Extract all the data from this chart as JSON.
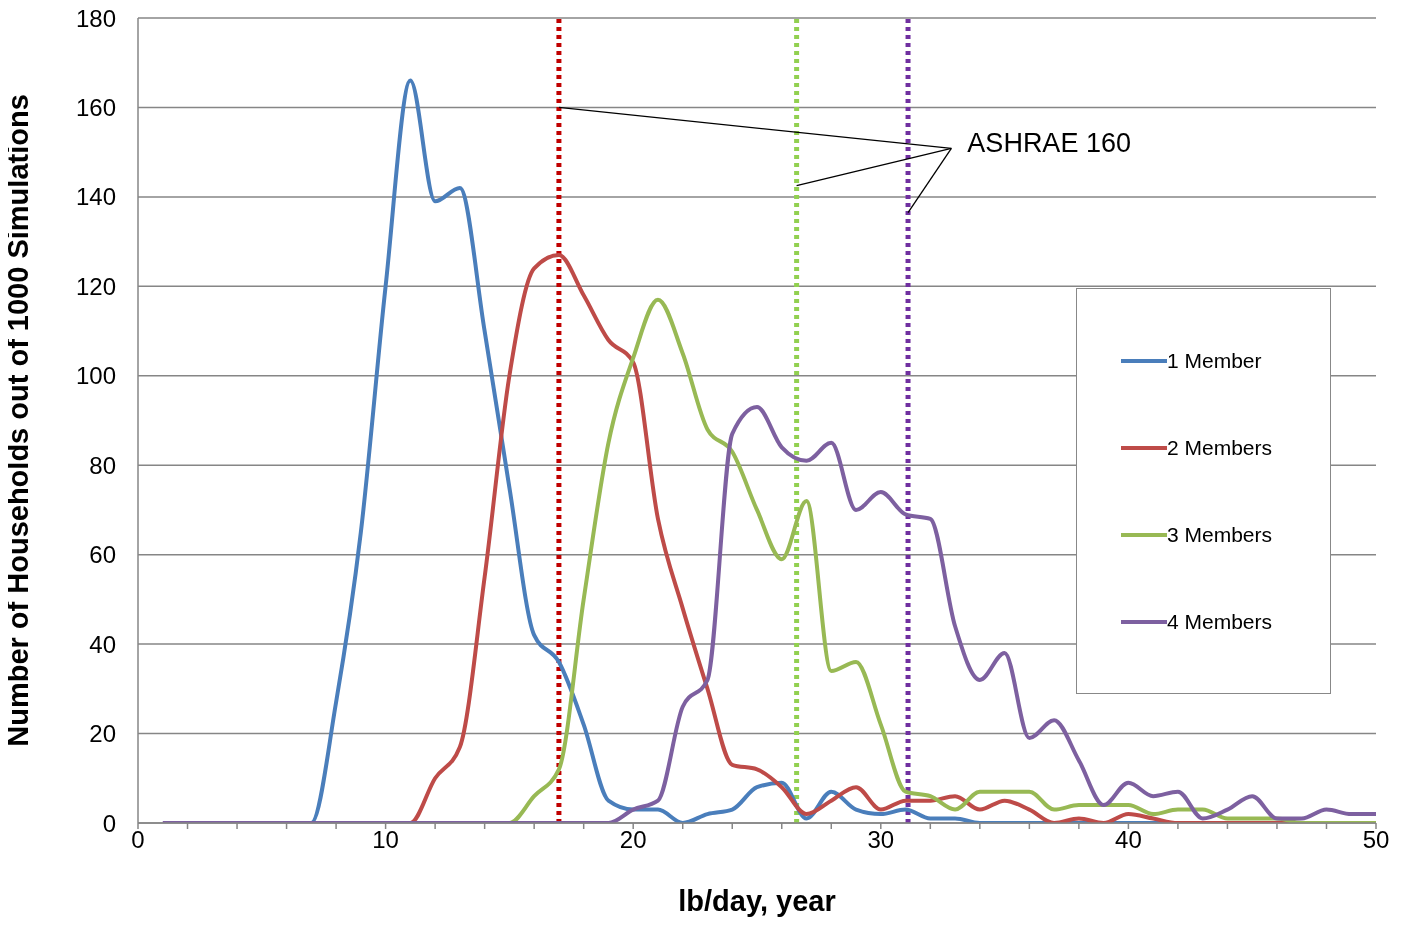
{
  "chart_data": {
    "type": "line",
    "xlabel": "lb/day, year",
    "ylabel": "Number of Households out of 1000 Simulations",
    "x": [
      1,
      2,
      3,
      4,
      5,
      6,
      7,
      8,
      9,
      10,
      11,
      12,
      13,
      14,
      15,
      16,
      17,
      18,
      19,
      20,
      21,
      22,
      23,
      24,
      25,
      26,
      27,
      28,
      29,
      30,
      31,
      32,
      33,
      34,
      35,
      36,
      37,
      38,
      39,
      40,
      41,
      42,
      43,
      44,
      45,
      46,
      47,
      48,
      49,
      50
    ],
    "series": [
      {
        "name": "1 Member",
        "color": "#4a7ebb",
        "values": [
          null,
          null,
          null,
          null,
          null,
          0,
          0,
          27,
          65,
          120,
          166,
          139,
          142,
          110,
          75,
          42,
          36,
          22,
          5,
          3,
          3,
          0,
          2,
          3,
          8,
          9,
          1,
          7,
          3,
          2,
          3,
          1,
          1,
          0,
          0,
          0,
          0,
          0,
          0,
          0,
          0,
          0,
          0,
          0,
          0,
          0,
          0,
          0,
          null,
          null
        ]
      },
      {
        "name": "2 Members",
        "color": "#be4b48",
        "values": [
          null,
          null,
          null,
          null,
          null,
          null,
          null,
          null,
          null,
          0,
          0,
          10,
          17,
          55,
          100,
          124,
          127,
          118,
          108,
          103,
          68,
          48,
          30,
          13,
          12,
          8,
          2,
          5,
          8,
          3,
          5,
          5,
          6,
          3,
          5,
          3,
          0,
          1,
          0,
          2,
          1,
          0,
          0,
          0,
          0,
          0,
          0,
          null,
          null,
          null
        ]
      },
      {
        "name": "3 Members",
        "color": "#98b954",
        "values": [
          null,
          null,
          null,
          null,
          null,
          null,
          null,
          null,
          null,
          null,
          null,
          null,
          null,
          0,
          0,
          6,
          12,
          50,
          85,
          104,
          117,
          105,
          88,
          83,
          70,
          59,
          72,
          34,
          36,
          22,
          7,
          6,
          3,
          7,
          7,
          7,
          3,
          4,
          4,
          4,
          2,
          3,
          3,
          1,
          1,
          1,
          0,
          0,
          0,
          0
        ]
      },
      {
        "name": "4 Members",
        "color": "#7d60a0",
        "values": [
          0,
          0,
          0,
          0,
          0,
          0,
          0,
          0,
          0,
          0,
          0,
          0,
          0,
          0,
          0,
          0,
          0,
          0,
          0,
          3,
          5,
          26,
          32,
          87,
          93,
          84,
          81,
          85,
          70,
          74,
          69,
          68,
          44,
          32,
          38,
          19,
          23,
          14,
          4,
          9,
          6,
          7,
          1,
          3,
          6,
          1,
          1,
          3,
          2,
          2
        ]
      }
    ],
    "xlim": [
      0,
      50
    ],
    "xticks": [
      0,
      {
        "value": 2,
        "label": null
      },
      {
        "value": 4,
        "label": null
      },
      {
        "value": 6,
        "label": null
      },
      {
        "value": 8,
        "label": null
      },
      10,
      {
        "value": 12,
        "label": null
      },
      {
        "value": 14,
        "label": null
      },
      {
        "value": 16,
        "label": null
      },
      {
        "value": 18,
        "label": null
      },
      20,
      {
        "value": 22,
        "label": null
      },
      {
        "value": 24,
        "label": null
      },
      {
        "value": 26,
        "label": null
      },
      {
        "value": 28,
        "label": null
      },
      30,
      {
        "value": 32,
        "label": null
      },
      {
        "value": 34,
        "label": null
      },
      {
        "value": 36,
        "label": null
      },
      {
        "value": 38,
        "label": null
      },
      40,
      {
        "value": 42,
        "label": null
      },
      {
        "value": 44,
        "label": null
      },
      {
        "value": 46,
        "label": null
      },
      {
        "value": 48,
        "label": null
      },
      50
    ],
    "ylim": [
      0,
      180
    ],
    "yticks": [
      0,
      20,
      40,
      60,
      80,
      100,
      120,
      140,
      160,
      180
    ],
    "ref_lines": [
      {
        "axis": "x",
        "value": 17,
        "color": "#c00000",
        "line_style": "dotted"
      },
      {
        "axis": "x",
        "value": 26.6,
        "color": "#92d050",
        "line_style": "dotted"
      },
      {
        "axis": "x",
        "value": 31.1,
        "color": "#7030a0",
        "line_style": "dotted"
      }
    ],
    "annotations": [
      {
        "text": "ASHRAE 160",
        "x": 17,
        "y": 160
      }
    ],
    "grid": "y",
    "legend": "right",
    "marker": "none",
    "line_style": "solid"
  }
}
